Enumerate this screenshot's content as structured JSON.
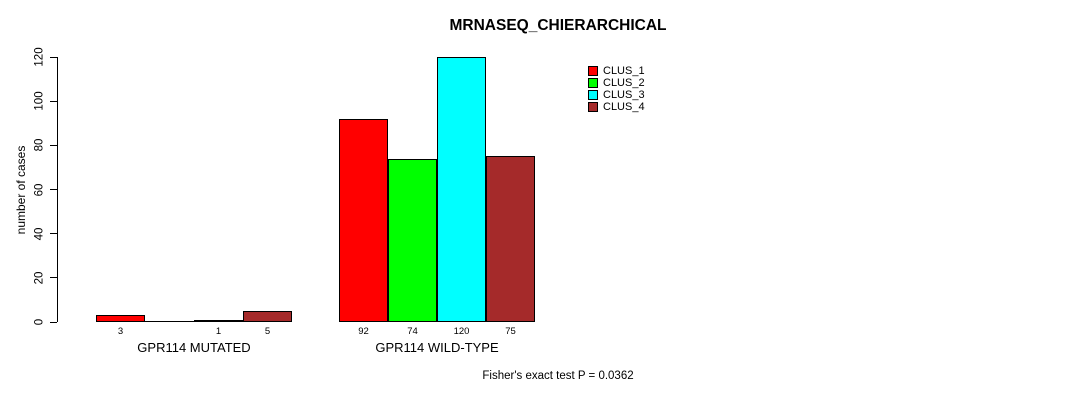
{
  "chart_data": {
    "type": "bar",
    "title": "MRNASEQ_CHIERARCHICAL",
    "ylabel": "number of cases",
    "xlabel": "",
    "ylim": [
      0,
      120
    ],
    "yticks": [
      "0",
      "20",
      "40",
      "60",
      "80",
      "100",
      "120"
    ],
    "categories": [
      "GPR114 MUTATED",
      "GPR114 WILD-TYPE"
    ],
    "series": [
      {
        "name": "CLUS_1",
        "color": "#FF0000",
        "values": [
          3,
          92
        ]
      },
      {
        "name": "CLUS_2",
        "color": "#00FF00",
        "values": [
          0,
          74
        ]
      },
      {
        "name": "CLUS_3",
        "color": "#00FFFF",
        "values": [
          1,
          120
        ]
      },
      {
        "name": "CLUS_4",
        "color": "#A52A2A",
        "values": [
          5,
          75
        ]
      }
    ],
    "bar_value_labels": [
      [
        "3",
        "",
        "1",
        "5"
      ],
      [
        "92",
        "74",
        "120",
        "75"
      ]
    ],
    "legend_position": "top-right",
    "legend_entries": [
      "CLUS_1",
      "CLUS_2",
      "CLUS_3",
      "CLUS_4"
    ],
    "annotation": "Fisher's exact test P = 0.0362",
    "grid": false,
    "axis_color": "#000000",
    "bar_border_color": "#000000",
    "background_color": "#FFFFFF"
  }
}
